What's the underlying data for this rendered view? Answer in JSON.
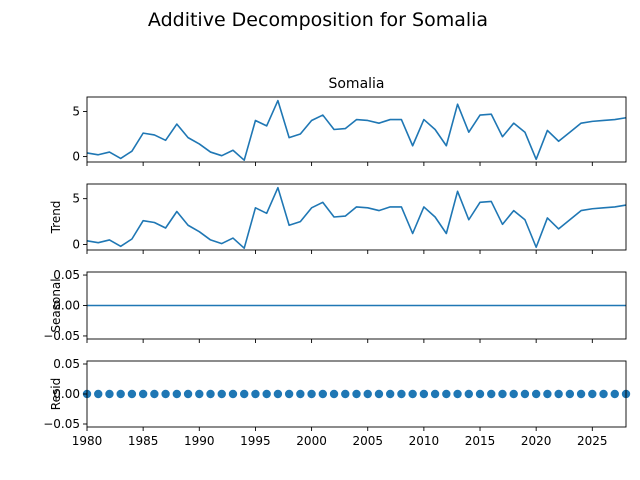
{
  "chart_data": {
    "type": "line",
    "title": "Additive Decomposition for Somalia",
    "x": [
      1980,
      1981,
      1982,
      1983,
      1984,
      1985,
      1986,
      1987,
      1988,
      1989,
      1990,
      1991,
      1992,
      1993,
      1994,
      1995,
      1996,
      1997,
      1998,
      1999,
      2000,
      2001,
      2002,
      2003,
      2004,
      2005,
      2006,
      2007,
      2008,
      2009,
      2010,
      2011,
      2012,
      2013,
      2014,
      2015,
      2016,
      2017,
      2018,
      2019,
      2020,
      2021,
      2022,
      2023,
      2024,
      2025,
      2026,
      2027,
      2028
    ],
    "xlim": [
      1980,
      2028
    ],
    "xticks": [
      "1980",
      "1985",
      "1990",
      "1995",
      "2000",
      "2005",
      "2010",
      "2015",
      "2020",
      "2025"
    ],
    "panels": [
      {
        "name": "observed",
        "subtitle": "Somalia",
        "ylabel": "",
        "kind": "line",
        "ylim": [
          -0.6,
          6.6
        ],
        "yticks": [
          "0",
          "5"
        ],
        "values": [
          0.4,
          0.2,
          0.5,
          -0.2,
          0.6,
          2.6,
          2.4,
          1.8,
          3.6,
          2.1,
          1.4,
          0.5,
          0.1,
          0.7,
          -0.4,
          4.0,
          3.4,
          6.2,
          2.1,
          2.5,
          4.0,
          4.6,
          3.0,
          3.1,
          4.1,
          4.0,
          3.7,
          4.1,
          4.1,
          1.2,
          4.1,
          3.0,
          1.2,
          5.8,
          2.7,
          4.6,
          4.7,
          2.2,
          3.7,
          2.7,
          -0.3,
          2.9,
          1.7,
          2.7,
          3.7,
          3.9,
          4.0,
          4.1,
          4.3
        ]
      },
      {
        "name": "trend",
        "subtitle": "",
        "ylabel": "Trend",
        "kind": "line",
        "ylim": [
          -0.6,
          6.6
        ],
        "yticks": [
          "0",
          "5"
        ],
        "values": [
          0.4,
          0.2,
          0.5,
          -0.2,
          0.6,
          2.6,
          2.4,
          1.8,
          3.6,
          2.1,
          1.4,
          0.5,
          0.1,
          0.7,
          -0.4,
          4.0,
          3.4,
          6.2,
          2.1,
          2.5,
          4.0,
          4.6,
          3.0,
          3.1,
          4.1,
          4.0,
          3.7,
          4.1,
          4.1,
          1.2,
          4.1,
          3.0,
          1.2,
          5.8,
          2.7,
          4.6,
          4.7,
          2.2,
          3.7,
          2.7,
          -0.3,
          2.9,
          1.7,
          2.7,
          3.7,
          3.9,
          4.0,
          4.1,
          4.3
        ]
      },
      {
        "name": "seasonal",
        "subtitle": "",
        "ylabel": "Seasonal",
        "kind": "line",
        "ylim": [
          -0.055,
          0.055
        ],
        "yticks": [
          "0.05",
          "0.00",
          "−0.05"
        ],
        "values": [
          0,
          0,
          0,
          0,
          0,
          0,
          0,
          0,
          0,
          0,
          0,
          0,
          0,
          0,
          0,
          0,
          0,
          0,
          0,
          0,
          0,
          0,
          0,
          0,
          0,
          0,
          0,
          0,
          0,
          0,
          0,
          0,
          0,
          0,
          0,
          0,
          0,
          0,
          0,
          0,
          0,
          0,
          0,
          0,
          0,
          0,
          0,
          0,
          0
        ]
      },
      {
        "name": "resid",
        "subtitle": "",
        "ylabel": "Resid",
        "kind": "scatter",
        "ylim": [
          -0.055,
          0.055
        ],
        "yticks": [
          "0.05",
          "0.00",
          "−0.05"
        ],
        "values": [
          0,
          0,
          0,
          0,
          0,
          0,
          0,
          0,
          0,
          0,
          0,
          0,
          0,
          0,
          0,
          0,
          0,
          0,
          0,
          0,
          0,
          0,
          0,
          0,
          0,
          0,
          0,
          0,
          0,
          0,
          0,
          0,
          0,
          0,
          0,
          0,
          0,
          0,
          0,
          0,
          0,
          0,
          0,
          0,
          0,
          0,
          0,
          0,
          0
        ]
      }
    ]
  }
}
